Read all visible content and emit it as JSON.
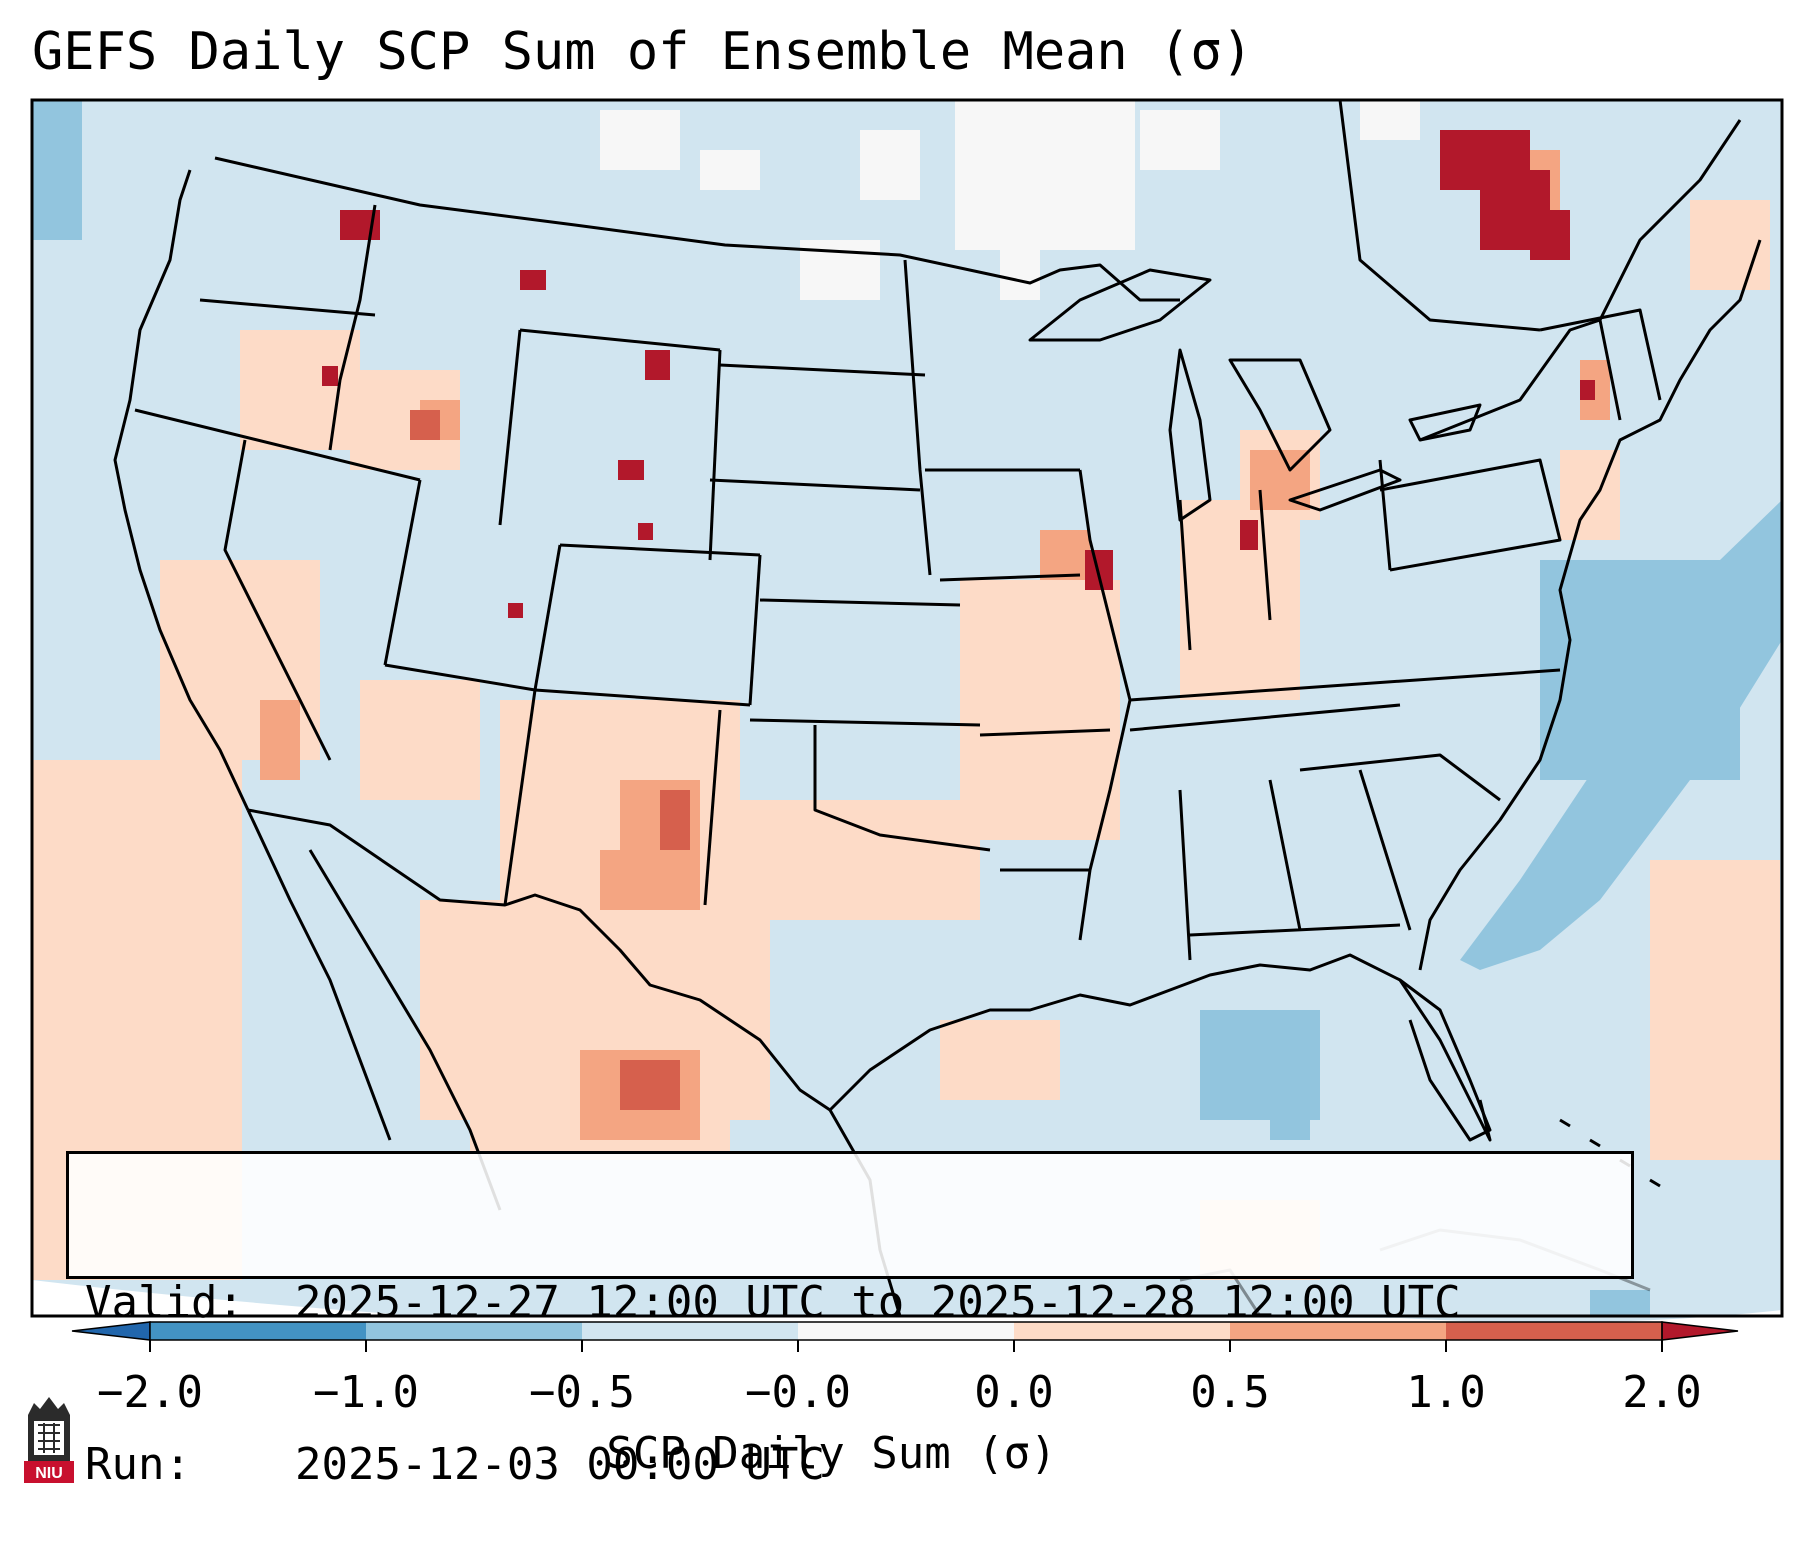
{
  "title": "GEFS Daily SCP Sum of Ensemble Mean (σ)",
  "info": {
    "valid_label": "Valid:",
    "valid_value": "2025-12-27 12:00 UTC to 2025-12-28 12:00 UTC",
    "run_label": "Run:",
    "run_value": "2025-12-03 00:00 UTC"
  },
  "colorbar": {
    "label": "SCP Daily Sum (σ)",
    "ticks": [
      "−2.0",
      "−1.0",
      "−0.5",
      "−0.0",
      "0.0",
      "0.5",
      "1.0",
      "2.0"
    ],
    "colors": [
      "#4393c3",
      "#92c5de",
      "#d1e5f0",
      "#f7f7f7",
      "#fddbc7",
      "#f4a582",
      "#d6604d"
    ],
    "under_color": "#2166ac",
    "over_color": "#b2182b"
  },
  "map": {
    "background_color": "#d1e5f0",
    "region": "Contiguous United States"
  },
  "logo": {
    "text": "NIU"
  }
}
